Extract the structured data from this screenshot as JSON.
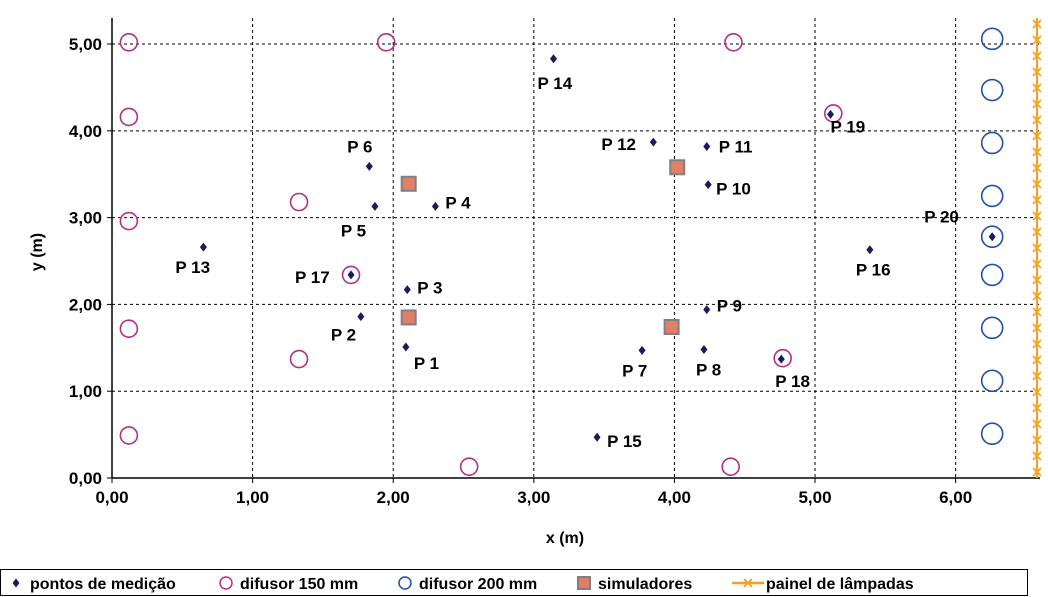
{
  "colors": {
    "point": "#1a1a5e",
    "diffuser150": "#b5307f",
    "diffuser200": "#1f4fb0",
    "simulator_fill": "#e0806a",
    "simulator_edge": "#808080",
    "lamp_panel": "#f2a21e",
    "grid": "#000000"
  },
  "chart_data": {
    "type": "scatter",
    "title": "",
    "xlabel": "x (m)",
    "ylabel": "y (m)",
    "xlim": [
      0,
      6.6
    ],
    "ylim": [
      0,
      5.3
    ],
    "x_ticks": [
      "0,00",
      "1,00",
      "2,00",
      "3,00",
      "4,00",
      "5,00",
      "6,00"
    ],
    "y_ticks": [
      "0,00",
      "1,00",
      "2,00",
      "3,00",
      "4,00",
      "5,00"
    ],
    "x_tick_values": [
      0,
      1,
      2,
      3,
      4,
      5,
      6
    ],
    "y_tick_values": [
      0,
      1,
      2,
      3,
      4,
      5
    ],
    "grid": "dashed",
    "legend_position": "bottom",
    "series": [
      {
        "name": "pontos de medição",
        "marker": "diamond",
        "points": [
          {
            "label": "P 1",
            "x": 2.09,
            "y": 1.51
          },
          {
            "label": "P 2",
            "x": 1.77,
            "y": 1.86
          },
          {
            "label": "P 3",
            "x": 2.1,
            "y": 2.17
          },
          {
            "label": "P 4",
            "x": 2.3,
            "y": 3.13
          },
          {
            "label": "P 5",
            "x": 1.87,
            "y": 3.13
          },
          {
            "label": "P 6",
            "x": 1.83,
            "y": 3.59
          },
          {
            "label": "P 7",
            "x": 3.77,
            "y": 1.47
          },
          {
            "label": "P 8",
            "x": 4.21,
            "y": 1.48
          },
          {
            "label": "P 9",
            "x": 4.23,
            "y": 1.94
          },
          {
            "label": "P 10",
            "x": 4.24,
            "y": 3.38
          },
          {
            "label": "P 11",
            "x": 4.23,
            "y": 3.82
          },
          {
            "label": "P 12",
            "x": 3.85,
            "y": 3.87
          },
          {
            "label": "P 13",
            "x": 0.65,
            "y": 2.66
          },
          {
            "label": "P 14",
            "x": 3.14,
            "y": 4.83
          },
          {
            "label": "P 15",
            "x": 3.45,
            "y": 0.47
          },
          {
            "label": "P 16",
            "x": 5.39,
            "y": 2.63
          },
          {
            "label": "P 17",
            "x": 1.7,
            "y": 2.34
          },
          {
            "label": "P 18",
            "x": 4.76,
            "y": 1.37
          },
          {
            "label": "P 19",
            "x": 5.11,
            "y": 4.19
          },
          {
            "label": "P 20",
            "x": 6.26,
            "y": 2.78
          }
        ]
      },
      {
        "name": "difusor 150 mm",
        "marker": "open-circle",
        "points": [
          {
            "x": 0.12,
            "y": 5.02
          },
          {
            "x": 0.12,
            "y": 4.16
          },
          {
            "x": 0.12,
            "y": 2.96
          },
          {
            "x": 0.12,
            "y": 1.72
          },
          {
            "x": 0.12,
            "y": 0.49
          },
          {
            "x": 1.95,
            "y": 5.02
          },
          {
            "x": 4.42,
            "y": 5.02
          },
          {
            "x": 1.33,
            "y": 3.18
          },
          {
            "x": 1.33,
            "y": 1.37
          },
          {
            "x": 1.7,
            "y": 2.34
          },
          {
            "x": 2.54,
            "y": 0.13
          },
          {
            "x": 4.4,
            "y": 0.13
          },
          {
            "x": 4.77,
            "y": 1.38
          },
          {
            "x": 5.13,
            "y": 4.2
          }
        ]
      },
      {
        "name": "difusor 200 mm",
        "marker": "open-circle",
        "points": [
          {
            "x": 6.26,
            "y": 5.06
          },
          {
            "x": 6.26,
            "y": 4.47
          },
          {
            "x": 6.26,
            "y": 3.86
          },
          {
            "x": 6.26,
            "y": 3.25
          },
          {
            "x": 6.26,
            "y": 2.78
          },
          {
            "x": 6.26,
            "y": 2.34
          },
          {
            "x": 6.26,
            "y": 1.73
          },
          {
            "x": 6.26,
            "y": 1.12
          },
          {
            "x": 6.26,
            "y": 0.51
          }
        ]
      },
      {
        "name": "simuladores",
        "marker": "square",
        "points": [
          {
            "x": 2.11,
            "y": 3.39
          },
          {
            "x": 2.11,
            "y": 1.85
          },
          {
            "x": 4.02,
            "y": 3.58
          },
          {
            "x": 3.98,
            "y": 1.74
          }
        ]
      },
      {
        "name": "painel de lâmpadas",
        "marker": "line-x",
        "points": [
          {
            "x": 6.6,
            "y": 0
          },
          {
            "x": 6.6,
            "y": 5.3
          }
        ]
      }
    ]
  },
  "legend": [
    {
      "marker": "diamond",
      "label": "pontos de medição"
    },
    {
      "marker": "circle150",
      "label": "difusor 150 mm"
    },
    {
      "marker": "circle200",
      "label": "difusor 200 mm"
    },
    {
      "marker": "square",
      "label": "simuladores"
    },
    {
      "marker": "line-x",
      "label": "painel de lâmpadas"
    }
  ]
}
